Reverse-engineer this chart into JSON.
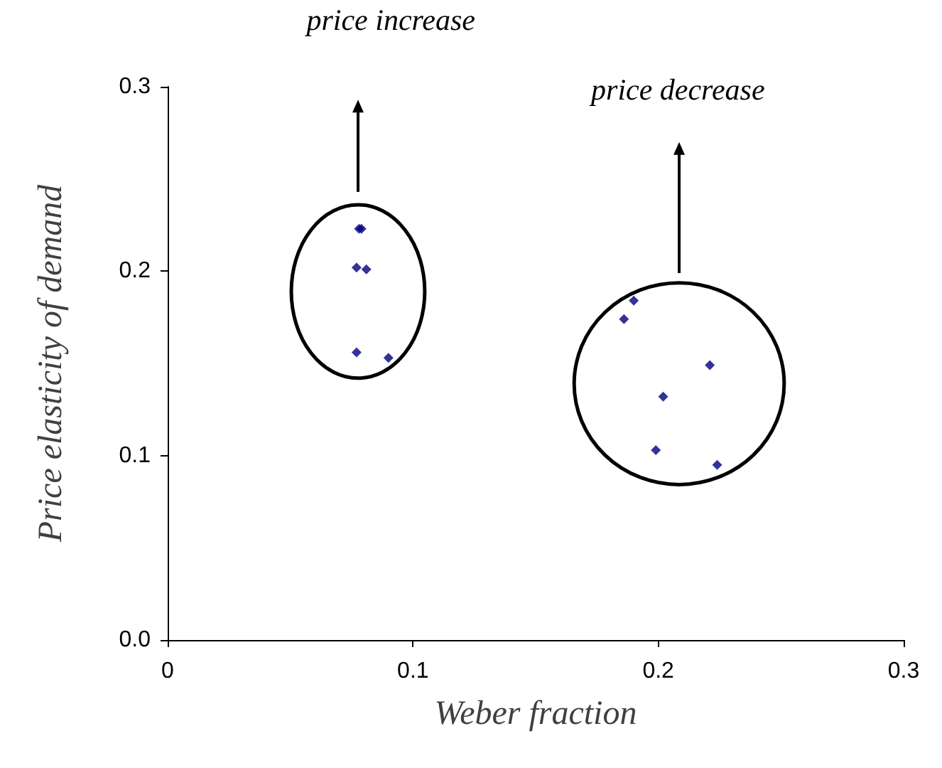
{
  "chart_data": {
    "type": "scatter",
    "xlabel": "Weber fraction",
    "ylabel": "Price elasticity of demand",
    "annotations": [
      "price increase",
      "price decrease"
    ],
    "series": [
      {
        "color": "#000080",
        "x": [
          0.078,
          0.079,
          0.077,
          0.081,
          0.077,
          0.09,
          0.19,
          0.186,
          0.221,
          0.202,
          0.199,
          0.224
        ],
        "values": [
          0.223,
          0.223,
          0.202,
          0.201,
          0.156,
          0.153,
          0.184,
          0.174,
          0.149,
          0.132,
          0.103,
          0.095
        ]
      }
    ],
    "xlim": [
      0,
      0.3
    ],
    "xticks": [
      0,
      0.1,
      0.2,
      0.3
    ],
    "ylim": [
      0,
      0.3
    ],
    "yticks": [
      {
        "value": 0,
        "label": "0.0"
      },
      0.1,
      0.2,
      0.3
    ],
    "grid": false,
    "marker": "diamond"
  }
}
